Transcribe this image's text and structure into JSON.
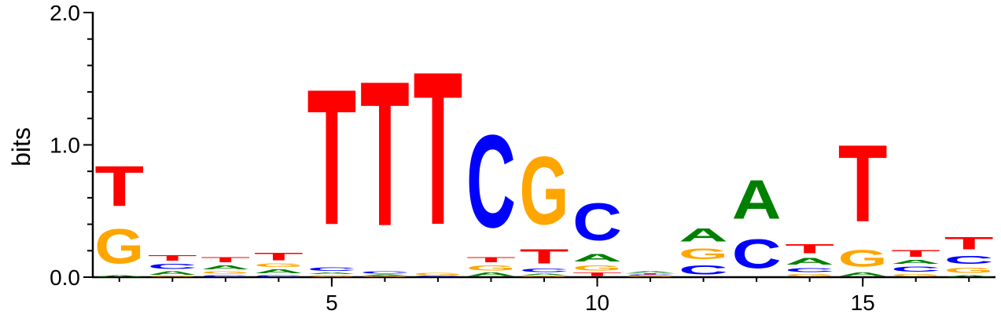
{
  "chart_data": {
    "type": "sequence-logo",
    "xlabel": "",
    "ylabel": "bits",
    "ylim": [
      0,
      2.0
    ],
    "y_ticks": [
      {
        "value": 0.0,
        "label": "0.0"
      },
      {
        "value": 1.0,
        "label": "1.0"
      },
      {
        "value": 2.0,
        "label": "2.0"
      }
    ],
    "y_minor_step": 0.2,
    "x_range": [
      0.5,
      17.5
    ],
    "x_ticks": [
      {
        "value": 5,
        "label": "5"
      },
      {
        "value": 10,
        "label": "10"
      },
      {
        "value": 15,
        "label": "15"
      }
    ],
    "colors": {
      "A": "#008000",
      "C": "#0000ff",
      "G": "#ffa500",
      "T": "#ff0000"
    },
    "positions": [
      {
        "pos": 1,
        "stack": [
          {
            "letter": "A",
            "height": 0.02
          },
          {
            "letter": "G",
            "height": 0.42
          },
          {
            "letter": "T",
            "height": 0.49
          }
        ]
      },
      {
        "pos": 2,
        "stack": [
          {
            "letter": "G",
            "height": 0.01
          },
          {
            "letter": "A",
            "height": 0.04
          },
          {
            "letter": "C",
            "height": 0.06
          },
          {
            "letter": "T",
            "height": 0.07
          }
        ]
      },
      {
        "pos": 3,
        "stack": [
          {
            "letter": "C",
            "height": 0.02
          },
          {
            "letter": "G",
            "height": 0.03
          },
          {
            "letter": "A",
            "height": 0.05
          },
          {
            "letter": "T",
            "height": 0.06
          }
        ]
      },
      {
        "pos": 4,
        "stack": [
          {
            "letter": "C",
            "height": 0.02
          },
          {
            "letter": "A",
            "height": 0.05
          },
          {
            "letter": "G",
            "height": 0.04
          },
          {
            "letter": "T",
            "height": 0.09
          }
        ]
      },
      {
        "pos": 5,
        "stack": [
          {
            "letter": "G",
            "height": 0.02
          },
          {
            "letter": "A",
            "height": 0.02
          },
          {
            "letter": "C",
            "height": 0.04
          },
          {
            "letter": "T",
            "height": 1.64
          }
        ]
      },
      {
        "pos": 6,
        "stack": [
          {
            "letter": "G",
            "height": 0.01
          },
          {
            "letter": "A",
            "height": 0.01
          },
          {
            "letter": "C",
            "height": 0.03
          },
          {
            "letter": "T",
            "height": 1.75
          }
        ]
      },
      {
        "pos": 7,
        "stack": [
          {
            "letter": "C",
            "height": 0.01
          },
          {
            "letter": "G",
            "height": 0.03
          },
          {
            "letter": "T",
            "height": 1.85
          }
        ]
      },
      {
        "pos": 8,
        "stack": [
          {
            "letter": "A",
            "height": 0.04
          },
          {
            "letter": "G",
            "height": 0.06
          },
          {
            "letter": "T",
            "height": 0.06
          },
          {
            "letter": "C",
            "height": 1.12
          }
        ]
      },
      {
        "pos": 9,
        "stack": [
          {
            "letter": "G",
            "height": 0.01
          },
          {
            "letter": "A",
            "height": 0.02
          },
          {
            "letter": "C",
            "height": 0.04
          },
          {
            "letter": "T",
            "height": 0.17
          },
          {
            "letter": "G",
            "height": 0.82
          }
        ]
      },
      {
        "pos": 10,
        "stack": [
          {
            "letter": "T",
            "height": 0.04
          },
          {
            "letter": "G",
            "height": 0.06
          },
          {
            "letter": "A",
            "height": 0.09
          },
          {
            "letter": "C",
            "height": 0.45
          }
        ]
      },
      {
        "pos": 11,
        "stack": [
          {
            "letter": "G",
            "height": 0.01
          },
          {
            "letter": "C",
            "height": 0.01
          },
          {
            "letter": "T",
            "height": 0.01
          },
          {
            "letter": "A",
            "height": 0.02
          }
        ]
      },
      {
        "pos": 12,
        "stack": [
          {
            "letter": "C",
            "height": 0.11
          },
          {
            "letter": "G",
            "height": 0.13
          },
          {
            "letter": "A",
            "height": 0.16
          }
        ]
      },
      {
        "pos": 13,
        "stack": [
          {
            "letter": "C",
            "height": 0.35
          },
          {
            "letter": "A",
            "height": 0.47
          }
        ]
      },
      {
        "pos": 14,
        "stack": [
          {
            "letter": "G",
            "height": 0.03
          },
          {
            "letter": "C",
            "height": 0.05
          },
          {
            "letter": "A",
            "height": 0.08
          },
          {
            "letter": "T",
            "height": 0.11
          }
        ]
      },
      {
        "pos": 15,
        "stack": [
          {
            "letter": "A",
            "height": 0.04
          },
          {
            "letter": "G",
            "height": 0.2
          },
          {
            "letter": "T",
            "height": 0.93
          }
        ]
      },
      {
        "pos": 16,
        "stack": [
          {
            "letter": "G",
            "height": 0.03
          },
          {
            "letter": "C",
            "height": 0.06
          },
          {
            "letter": "A",
            "height": 0.05
          },
          {
            "letter": "T",
            "height": 0.08
          }
        ]
      },
      {
        "pos": 17,
        "stack": [
          {
            "letter": "A",
            "height": 0.02
          },
          {
            "letter": "G",
            "height": 0.06
          },
          {
            "letter": "C",
            "height": 0.1
          },
          {
            "letter": "T",
            "height": 0.15
          }
        ]
      }
    ]
  }
}
